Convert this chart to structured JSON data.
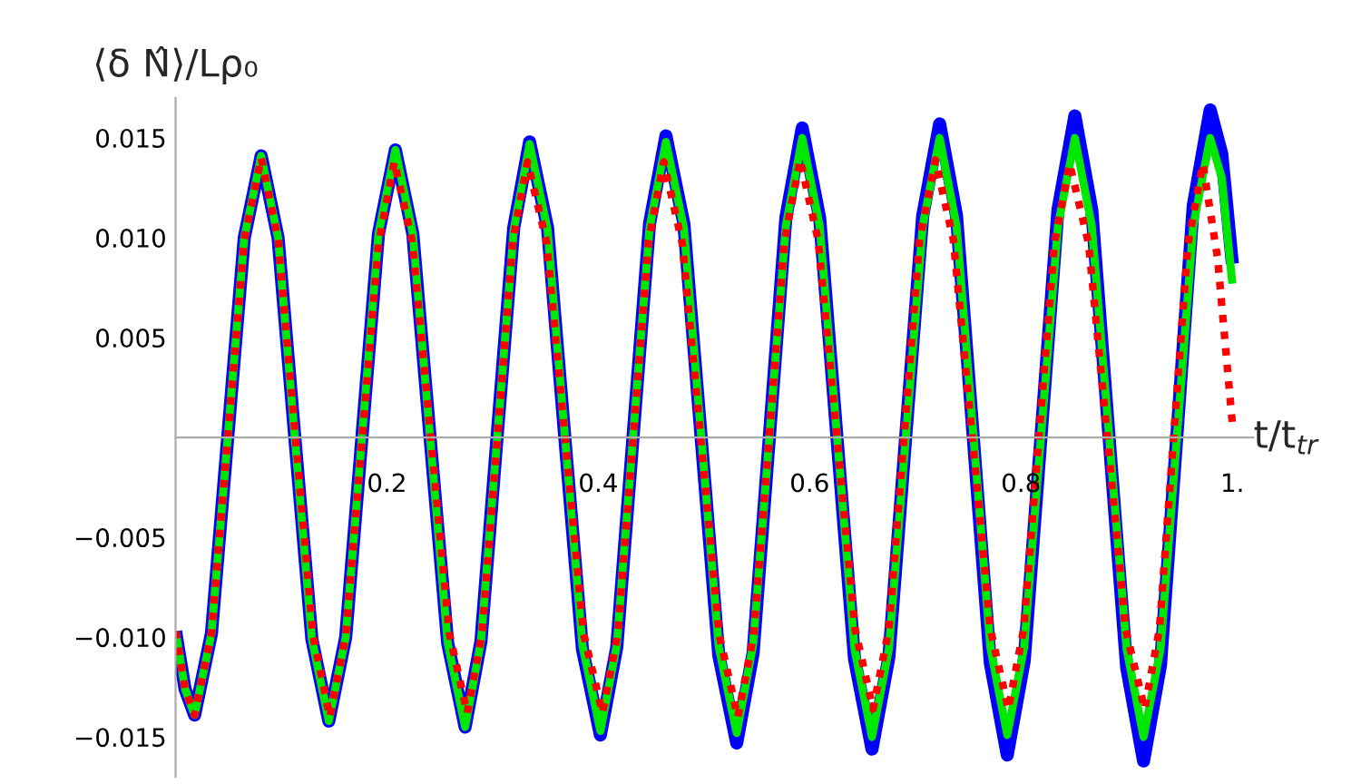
{
  "chart_data": {
    "type": "line",
    "xlabel": "t/t$_{tr}$",
    "ylabel": "⟨δ N̂⟩/Lρ₀",
    "xlim": [
      0,
      1.02
    ],
    "ylim": [
      -0.017,
      0.017
    ],
    "xticks": [
      0.2,
      0.4,
      0.6,
      0.8,
      {
        "value": 1,
        "label": "1."
      }
    ],
    "yticks": [
      {
        "value": -0.015,
        "label": "−0.015"
      },
      {
        "value": -0.01,
        "label": "−0.010"
      },
      {
        "value": -0.005,
        "label": "−0.005"
      },
      {
        "value": 0.005,
        "label": "0.005"
      },
      {
        "value": 0.01,
        "label": "0.010"
      },
      {
        "value": 0.015,
        "label": "0.015"
      }
    ],
    "grid": false,
    "legend": false,
    "series": [
      {
        "color": "#0000ff",
        "line_style": "solid",
        "x": [
          0,
          0.009,
          0.018,
          0.034,
          0.0495,
          0.065,
          0.081,
          0.097,
          0.113,
          0.129,
          0.145,
          0.161,
          0.1765,
          0.192,
          0.208,
          0.2245,
          0.241,
          0.2575,
          0.274,
          0.289,
          0.3045,
          0.32,
          0.335,
          0.352,
          0.3685,
          0.385,
          0.402,
          0.4175,
          0.433,
          0.4485,
          0.464,
          0.481,
          0.4975,
          0.514,
          0.531,
          0.5465,
          0.562,
          0.5775,
          0.593,
          0.6095,
          0.626,
          0.6425,
          0.659,
          0.675,
          0.691,
          0.707,
          0.723,
          0.739,
          0.755,
          0.771,
          0.787,
          0.803,
          0.819,
          0.835,
          0.851,
          0.867,
          0.8835,
          0.9,
          0.916,
          0.932,
          0.9475,
          0.963,
          0.979,
          0.99,
          1.0
        ],
        "values": [
          -0.0097,
          -0.0126,
          -0.0139,
          -0.0098,
          0.0001,
          0.01,
          0.0141,
          0.01,
          -0.0001,
          -0.0101,
          -0.0142,
          -0.01,
          0.0001,
          0.0102,
          0.0144,
          0.0102,
          -0.0001,
          -0.0103,
          -0.0145,
          -0.0102,
          0.0002,
          0.0105,
          0.0148,
          0.0105,
          -0.0001,
          -0.0106,
          -0.0149,
          -0.0105,
          0.0001,
          0.0107,
          0.0151,
          0.0107,
          -0.0001,
          -0.0109,
          -0.0153,
          -0.0108,
          0.0001,
          0.011,
          0.0155,
          0.011,
          -0.0001,
          -0.0111,
          -0.0156,
          -0.011,
          0.0001,
          0.0111,
          0.0157,
          0.0111,
          -0.0001,
          -0.0113,
          -0.0159,
          -0.0112,
          0.0001,
          0.0114,
          0.0161,
          0.0114,
          -0.0001,
          -0.0115,
          -0.0162,
          -0.0114,
          0.0001,
          0.0116,
          0.0164,
          0.0142,
          0.0087
        ]
      },
      {
        "color": "#00e800",
        "line_style": "solid",
        "x": [
          0,
          0.009,
          0.018,
          0.034,
          0.0495,
          0.065,
          0.081,
          0.097,
          0.113,
          0.129,
          0.145,
          0.161,
          0.1765,
          0.192,
          0.208,
          0.2245,
          0.241,
          0.2575,
          0.274,
          0.289,
          0.3045,
          0.32,
          0.335,
          0.352,
          0.3685,
          0.385,
          0.402,
          0.4175,
          0.433,
          0.4485,
          0.464,
          0.481,
          0.4975,
          0.514,
          0.531,
          0.5465,
          0.562,
          0.5775,
          0.593,
          0.6095,
          0.626,
          0.6425,
          0.659,
          0.675,
          0.691,
          0.707,
          0.723,
          0.739,
          0.755,
          0.771,
          0.787,
          0.803,
          0.819,
          0.835,
          0.851,
          0.867,
          0.8835,
          0.9,
          0.916,
          0.932,
          0.9475,
          0.963,
          0.979,
          0.99,
          1.0
        ],
        "values": [
          -0.0097,
          -0.0126,
          -0.0139,
          -0.0098,
          0.0001,
          0.01,
          0.0141,
          0.01,
          -0.0001,
          -0.0101,
          -0.0142,
          -0.01,
          0.0001,
          0.0102,
          0.0144,
          0.0102,
          -0.0001,
          -0.0103,
          -0.0145,
          -0.0102,
          0.0001,
          0.0104,
          0.0147,
          0.0104,
          0.0,
          -0.0104,
          -0.0147,
          -0.0104,
          0.0001,
          0.0105,
          0.0148,
          0.0105,
          0.0,
          -0.0105,
          -0.0148,
          -0.0104,
          0.0001,
          0.0106,
          0.015,
          0.0106,
          0.0,
          -0.0106,
          -0.015,
          -0.0106,
          0.0,
          0.0106,
          0.015,
          0.0106,
          0.0001,
          -0.0105,
          -0.0149,
          -0.0105,
          0.0001,
          0.0106,
          0.015,
          0.0106,
          0.0,
          -0.0106,
          -0.015,
          -0.0106,
          0.0,
          0.0106,
          0.015,
          0.013,
          0.0077
        ]
      },
      {
        "color": "#ff0000",
        "line_style": "dotted",
        "x": [
          0,
          0.009,
          0.018,
          0.034,
          0.0495,
          0.065,
          0.081,
          0.097,
          0.1135,
          0.13,
          0.146,
          0.161,
          0.1765,
          0.192,
          0.207,
          0.224,
          0.2415,
          0.259,
          0.276,
          0.29,
          0.3045,
          0.319,
          0.333,
          0.351,
          0.3685,
          0.386,
          0.404,
          0.4185,
          0.433,
          0.4475,
          0.462,
          0.4795,
          0.497,
          0.5145,
          0.532,
          0.547,
          0.5615,
          0.576,
          0.591,
          0.608,
          0.6255,
          0.643,
          0.66,
          0.675,
          0.6895,
          0.704,
          0.719,
          0.736,
          0.7535,
          0.771,
          0.788,
          0.8025,
          0.817,
          0.8315,
          0.846,
          0.864,
          0.8815,
          0.899,
          0.917,
          0.931,
          0.9445,
          0.958,
          0.972,
          0.986,
          1.0
        ],
        "values": [
          -0.0097,
          -0.0126,
          -0.0139,
          -0.0098,
          0.0001,
          0.0099,
          0.014,
          0.0099,
          0.0,
          -0.0099,
          -0.014,
          -0.0099,
          -0.0001,
          0.0097,
          0.0138,
          0.0098,
          0.0,
          -0.0098,
          -0.0138,
          -0.0098,
          0.0,
          0.0098,
          0.0138,
          0.0098,
          0.0,
          -0.0098,
          -0.0138,
          -0.0098,
          0.0,
          0.0098,
          0.0138,
          0.0097,
          -0.0001,
          -0.0099,
          -0.014,
          -0.0099,
          -0.0001,
          0.0098,
          0.0139,
          0.0099,
          0.0002,
          -0.0096,
          -0.0136,
          -0.0096,
          0.0002,
          0.0099,
          0.0139,
          0.0099,
          0.0002,
          -0.0096,
          -0.0136,
          -0.0096,
          0.0001,
          0.0097,
          0.0137,
          0.0097,
          0.0001,
          -0.0096,
          -0.0136,
          -0.0096,
          0.0001,
          0.0097,
          0.0137,
          0.009,
          0.0007
        ]
      }
    ]
  }
}
